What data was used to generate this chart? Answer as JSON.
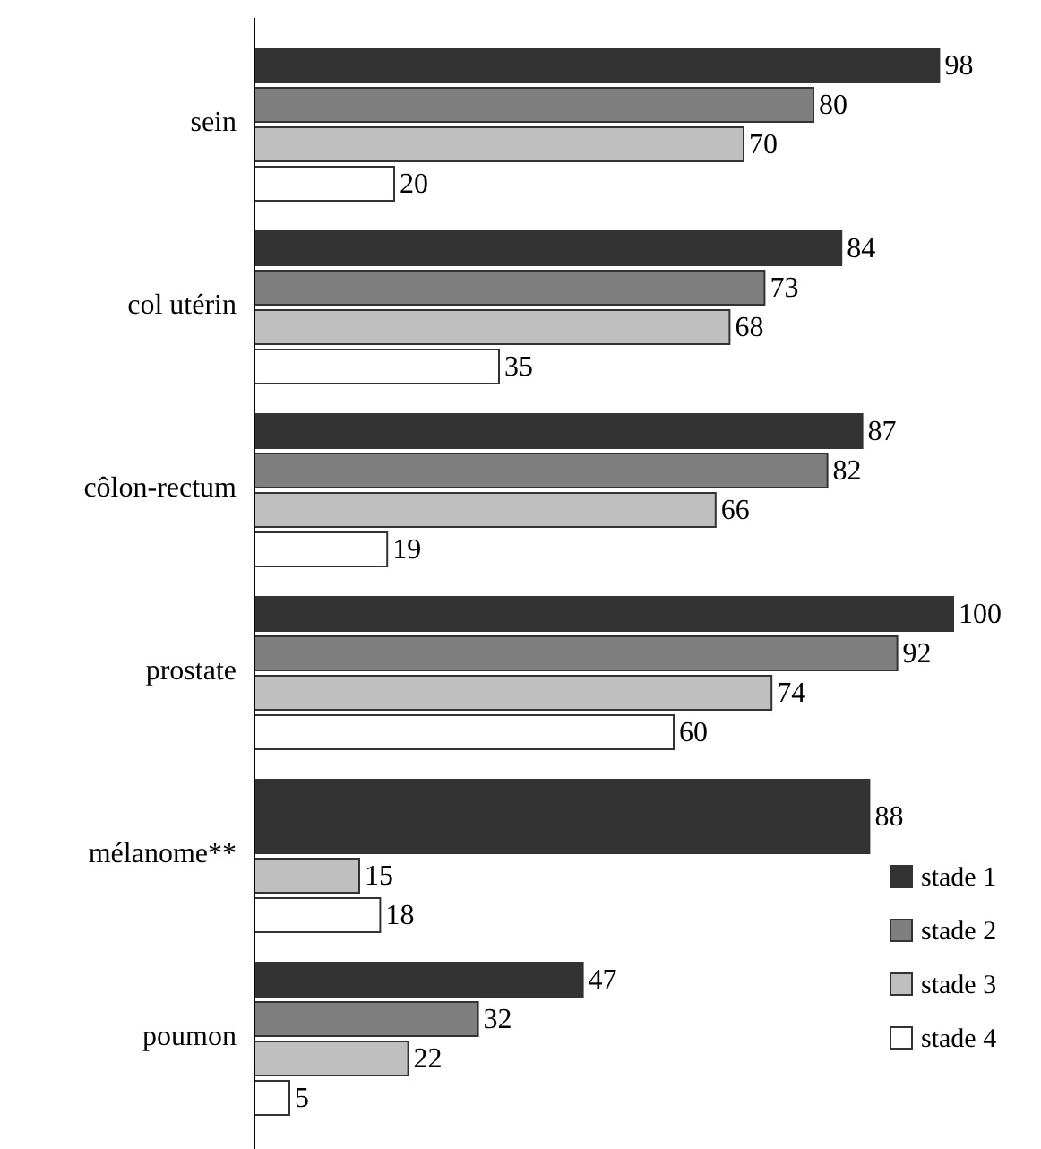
{
  "chart_data": {
    "type": "bar",
    "orientation": "horizontal",
    "categories": [
      "sein",
      "col utérin",
      "côlon-rectum",
      "prostate",
      "mélanome**",
      "poumon"
    ],
    "series": [
      {
        "name": "stade 1",
        "color": "#333333",
        "values": [
          98,
          84,
          87,
          100,
          88,
          47
        ]
      },
      {
        "name": "stade 2",
        "color": "#7f7f7f",
        "values": [
          80,
          73,
          82,
          92,
          null,
          32
        ]
      },
      {
        "name": "stade 3",
        "color": "#bfbfbf",
        "values": [
          70,
          68,
          66,
          74,
          15,
          22
        ]
      },
      {
        "name": "stade 4",
        "color": "#ffffff",
        "values": [
          20,
          35,
          19,
          60,
          18,
          5
        ]
      }
    ],
    "data_labels": true,
    "legend": "bottom right"
  }
}
